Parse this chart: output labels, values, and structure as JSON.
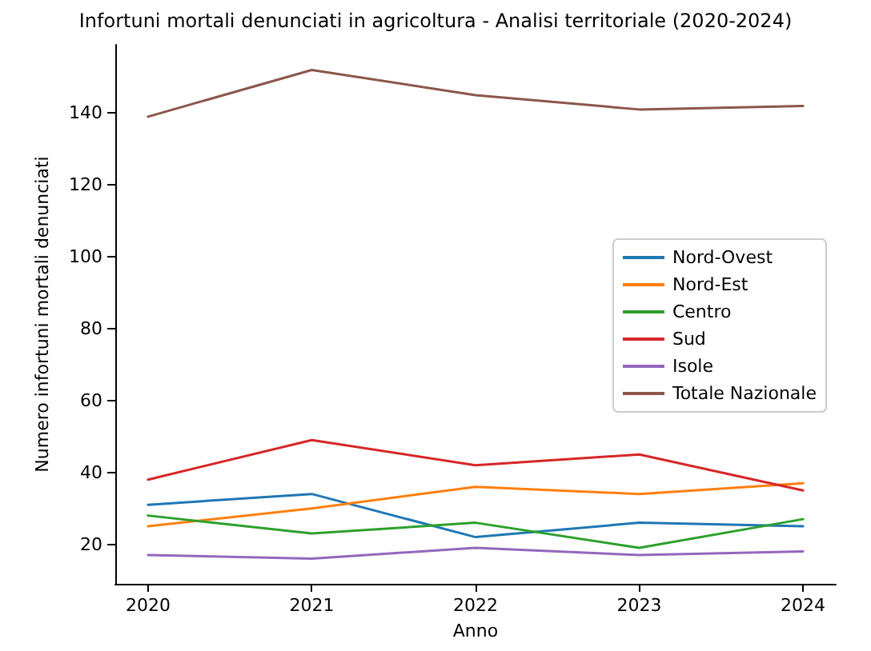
{
  "chart_data": {
    "type": "line",
    "title": "Infortuni mortali denunciati in agricoltura - Analisi territoriale (2020-2024)",
    "xlabel": "Anno",
    "ylabel": "Numero infortuni mortali denunciati",
    "x": [
      2020,
      2021,
      2022,
      2023,
      2024
    ],
    "series": [
      {
        "name": "Nord-Ovest",
        "color": "#1f77b4",
        "values": [
          31,
          34,
          22,
          26,
          25
        ]
      },
      {
        "name": "Nord-Est",
        "color": "#ff7f0e",
        "values": [
          25,
          30,
          36,
          34,
          37
        ]
      },
      {
        "name": "Centro",
        "color": "#2ca02c",
        "values": [
          28,
          23,
          26,
          19,
          27
        ]
      },
      {
        "name": "Sud",
        "color": "#d62728",
        "values": [
          38,
          49,
          42,
          45,
          35
        ]
      },
      {
        "name": "Isole",
        "color": "#9467bd",
        "values": [
          17,
          16,
          19,
          17,
          18
        ]
      },
      {
        "name": "Totale Nazionale",
        "color": "#8c564b",
        "values": [
          139,
          152,
          145,
          141,
          142
        ]
      }
    ],
    "xlim": [
      2019.8,
      2024.2
    ],
    "xticks": [
      2020,
      2021,
      2022,
      2023,
      2024
    ],
    "ylim": [
      9,
      159
    ],
    "yticks": [
      20,
      40,
      60,
      80,
      100,
      120,
      140
    ],
    "grid": false,
    "legend": "center right",
    "marker": "none",
    "line_style": "solid"
  }
}
